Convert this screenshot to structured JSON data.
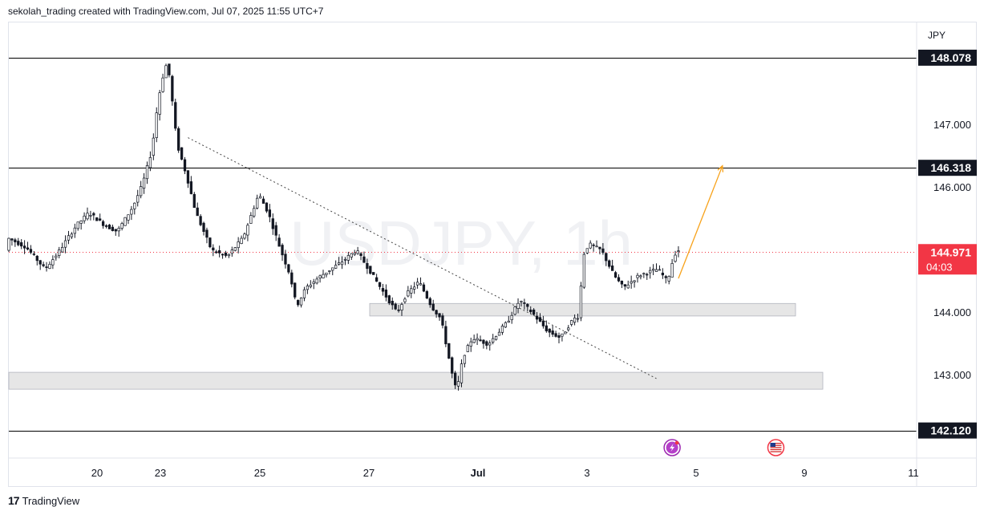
{
  "header": {
    "attribution": "sekolah_trading created with TradingView.com, Jul 07, 2025 11:55 UTC+7"
  },
  "footer": {
    "brand": "TradingView",
    "brand_mark": "17"
  },
  "colors": {
    "up": "#131722",
    "down": "#131722",
    "level_line": "#000000",
    "zone_fill": "#e6e6e6",
    "zone_stroke": "#b2b5be",
    "arrow": "#f7a21b",
    "current_price_bg": "#f23645",
    "trend": "#444444",
    "watermark": "#f0f1f4"
  },
  "chart_data": {
    "type": "candlestick",
    "symbol_watermark": "USDJPY, 1h",
    "currency": "JPY",
    "y_axis": {
      "ticks": [
        143.0,
        144.0,
        145.0,
        146.0,
        147.0
      ],
      "tick_labels": [
        "143.000",
        "144.000",
        "145.000",
        "146.000",
        "147.000"
      ],
      "ylim": [
        141.65,
        148.75
      ]
    },
    "x_axis": {
      "tick_labels": [
        "20",
        "23",
        "25",
        "27",
        "Jul",
        "3",
        "5",
        "9",
        "11"
      ]
    },
    "horizontal_levels": [
      {
        "price": 148.078,
        "label": "148.078"
      },
      {
        "price": 146.318,
        "label": "146.318"
      },
      {
        "price": 142.12,
        "label": "142.120"
      }
    ],
    "current_price": {
      "price": 144.971,
      "label": "144.971",
      "countdown": "04:03"
    },
    "zones": [
      {
        "top": 144.15,
        "bottom": 143.95
      },
      {
        "top": 143.05,
        "bottom": 142.78
      }
    ],
    "price_path": [
      [
        0,
        145.2
      ],
      [
        6,
        145.05
      ],
      [
        12,
        144.7
      ],
      [
        16,
        144.95
      ],
      [
        22,
        145.4
      ],
      [
        26,
        145.6
      ],
      [
        31,
        145.4
      ],
      [
        35,
        145.3
      ],
      [
        40,
        145.7
      ],
      [
        43,
        146.05
      ],
      [
        46,
        146.6
      ],
      [
        48,
        147.4
      ],
      [
        50,
        147.9
      ],
      [
        51,
        148.0
      ],
      [
        52,
        147.6
      ],
      [
        54,
        146.7
      ],
      [
        57,
        146.2
      ],
      [
        60,
        145.6
      ],
      [
        65,
        145.0
      ],
      [
        70,
        144.9
      ],
      [
        75,
        145.2
      ],
      [
        80,
        145.9
      ],
      [
        83,
        145.6
      ],
      [
        87,
        145.0
      ],
      [
        90,
        144.6
      ],
      [
        92,
        144.1
      ],
      [
        95,
        144.4
      ],
      [
        100,
        144.6
      ],
      [
        106,
        144.8
      ],
      [
        111,
        145.0
      ],
      [
        115,
        144.7
      ],
      [
        120,
        144.3
      ],
      [
        124,
        144.0
      ],
      [
        127,
        144.3
      ],
      [
        131,
        144.5
      ],
      [
        135,
        144.1
      ],
      [
        138,
        143.9
      ],
      [
        140,
        143.4
      ],
      [
        142,
        142.9
      ],
      [
        143,
        142.75
      ],
      [
        145,
        143.3
      ],
      [
        148,
        143.6
      ],
      [
        153,
        143.5
      ],
      [
        159,
        143.85
      ],
      [
        163,
        144.2
      ],
      [
        167,
        144.0
      ],
      [
        172,
        143.7
      ],
      [
        176,
        143.6
      ],
      [
        180,
        143.9
      ],
      [
        182,
        143.95
      ],
      [
        183,
        144.9
      ],
      [
        185,
        145.1
      ],
      [
        189,
        145.0
      ],
      [
        193,
        144.6
      ],
      [
        196,
        144.4
      ],
      [
        201,
        144.6
      ],
      [
        207,
        144.7
      ],
      [
        210,
        144.5
      ],
      [
        212,
        144.9
      ],
      [
        213,
        145.0
      ]
    ],
    "trend_line": {
      "from": {
        "time": 57,
        "price": 146.8
      },
      "to": {
        "time": 206,
        "price": 142.95
      }
    },
    "projection_arrow": {
      "from": {
        "time": 213,
        "price": 144.55
      },
      "to": {
        "time": 227,
        "price": 146.35
      }
    },
    "event_icons": [
      {
        "time": 211,
        "name": "lightning-event-icon"
      },
      {
        "time": 244,
        "name": "us-flag-event-icon"
      }
    ]
  }
}
